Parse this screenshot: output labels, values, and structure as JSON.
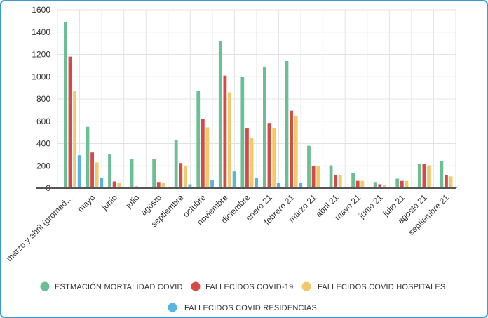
{
  "chart_data": {
    "type": "bar",
    "title": "",
    "xlabel": "",
    "ylabel": "",
    "ylim": [
      0,
      1600
    ],
    "yticks": [
      "1600",
      "1400",
      "1200",
      "1000",
      "800",
      "600",
      "400",
      "200",
      "0"
    ],
    "grid": "horizontal",
    "legend_position": "bottom",
    "categories": [
      "marzo y abril (promed…",
      "mayo",
      "junio",
      "julio",
      "agosto",
      "septiembre",
      "octubre",
      "noviembre",
      "diciembre",
      "enero 21",
      "febrero 21",
      "marzo 21",
      "abril 21",
      "mayo 21",
      "junio 21",
      "julio 21",
      "agosto 21",
      "septiembre 21"
    ],
    "series": [
      {
        "name": "ESTMACIÓN MORTALIDAD COVID",
        "color": "#6abf95",
        "values": [
          1490,
          550,
          305,
          260,
          260,
          430,
          870,
          1320,
          1000,
          1090,
          1140,
          380,
          205,
          135,
          55,
          85,
          220,
          245
        ]
      },
      {
        "name": "FALLECIDOS COVID-19",
        "color": "#d94848",
        "values": [
          1180,
          320,
          60,
          15,
          55,
          225,
          620,
          1010,
          535,
          585,
          695,
          200,
          120,
          65,
          35,
          65,
          215,
          115
        ]
      },
      {
        "name": "FALLECIDOS COVID HOSPITALES",
        "color": "#f2c96a",
        "values": [
          875,
          230,
          50,
          8,
          50,
          195,
          545,
          860,
          450,
          540,
          650,
          200,
          120,
          65,
          30,
          65,
          205,
          105
        ]
      },
      {
        "name": "FALLECIDOS COVID RESIDENCIAS",
        "color": "#5ab4e0",
        "values": [
          295,
          90,
          5,
          2,
          3,
          35,
          75,
          150,
          90,
          45,
          45,
          5,
          3,
          3,
          2,
          2,
          8,
          10
        ]
      }
    ]
  }
}
